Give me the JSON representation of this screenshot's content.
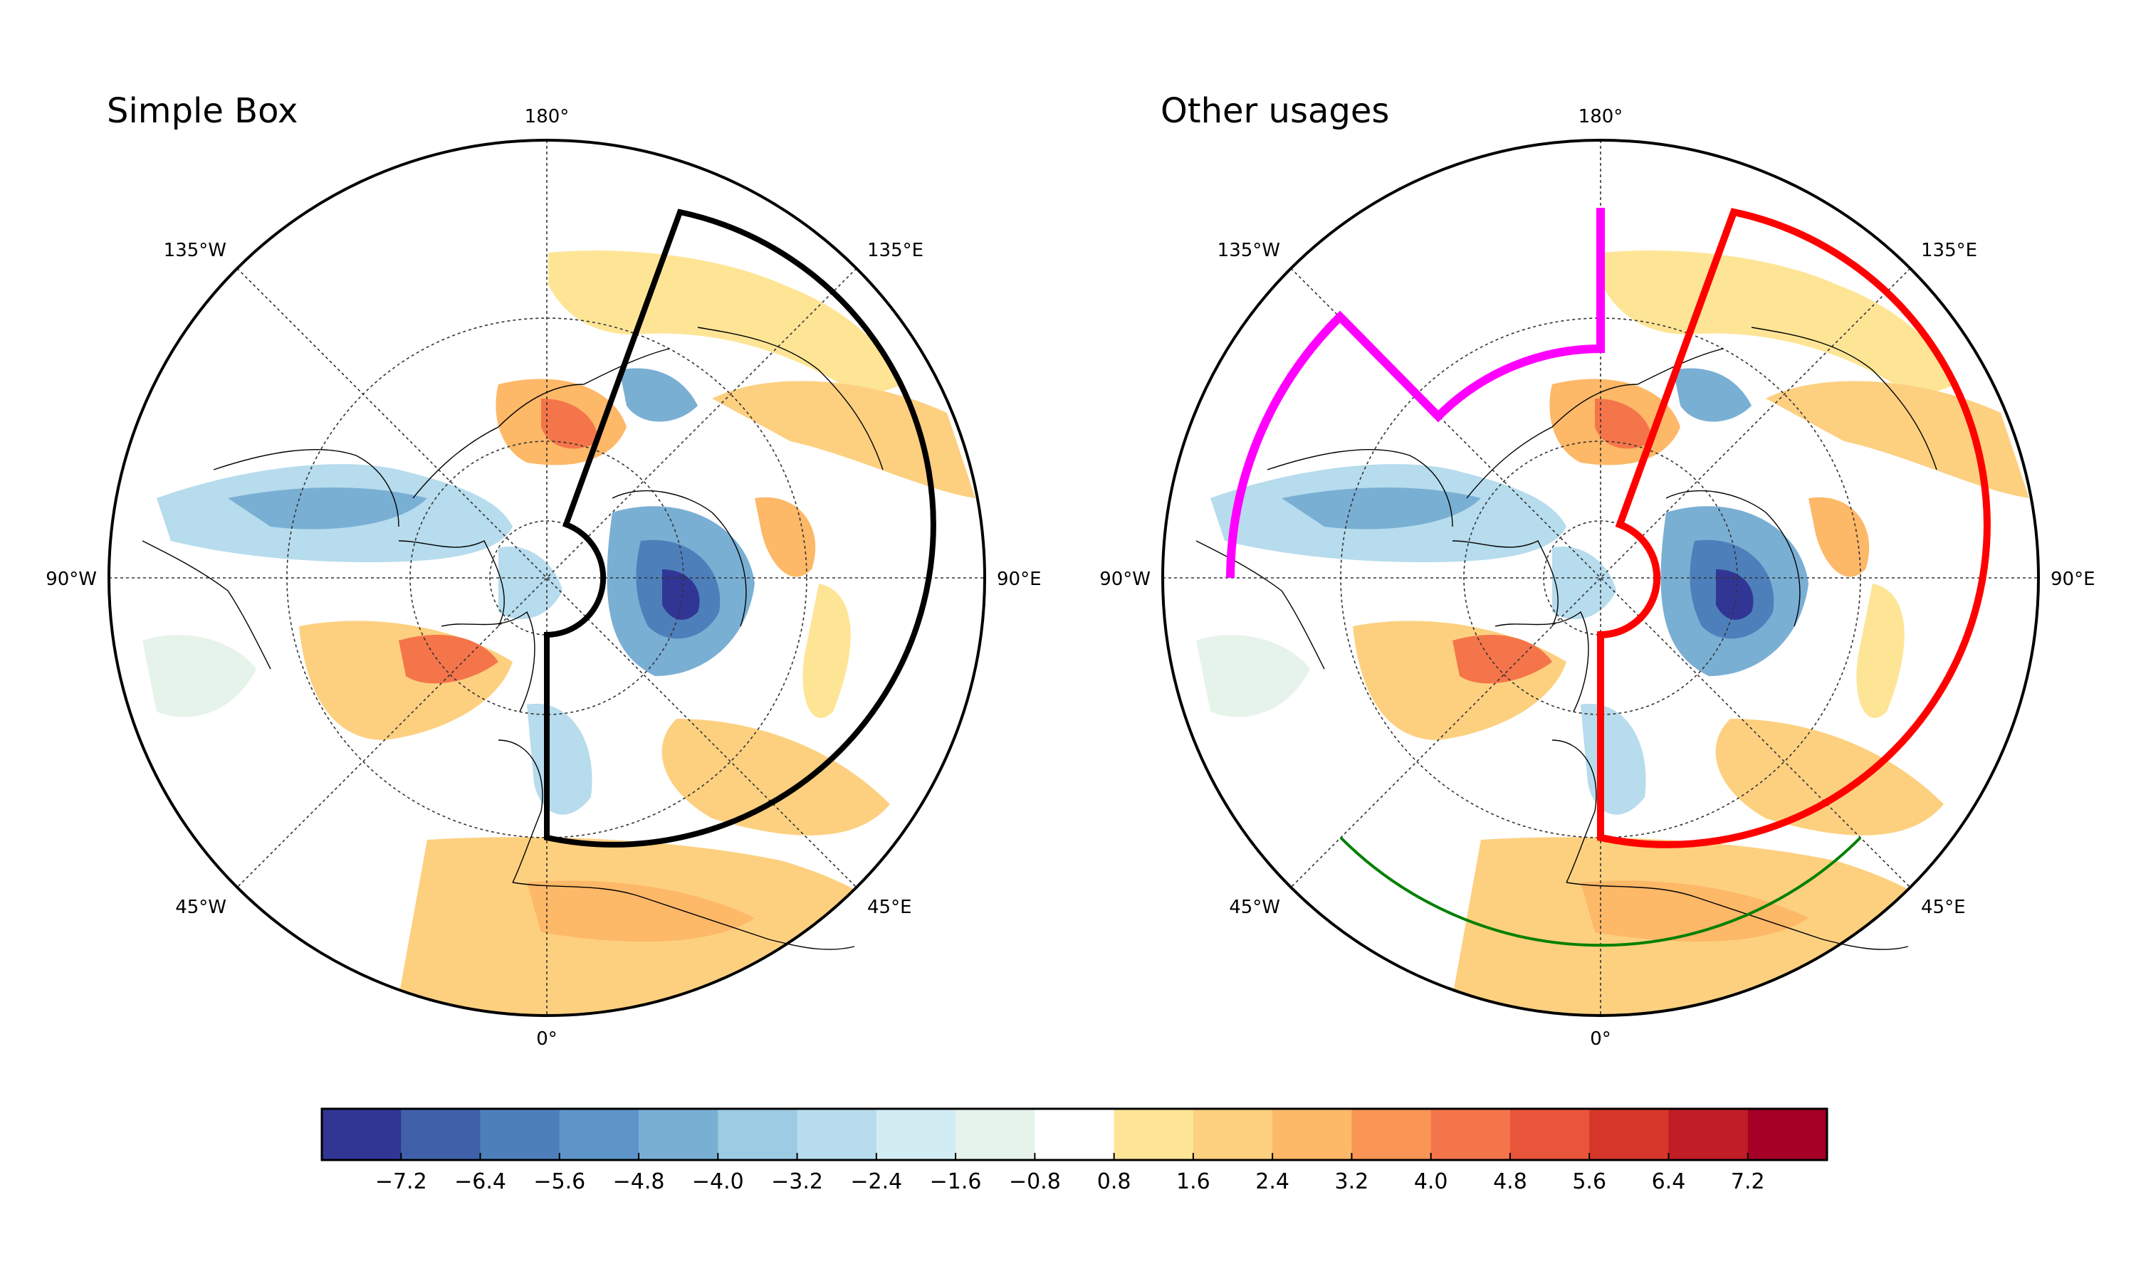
{
  "panels": [
    {
      "id": "left",
      "title": "Simple Box",
      "lon_labels": {
        "top": "180°",
        "bottom": "0°",
        "left": "90°W",
        "right": "90°E",
        "upper_left": "135°W",
        "upper_right": "135°E",
        "lower_left": "45°W",
        "lower_right": "45°E"
      },
      "overlays": [
        {
          "kind": "sector-box",
          "color": "#000000",
          "lon_range_deg": [
            0,
            160
          ],
          "lat_range_deg": [
            80,
            40
          ]
        }
      ]
    },
    {
      "id": "right",
      "title": "Other usages",
      "lon_labels": {
        "top": "180°",
        "bottom": "0°",
        "left": "90°W",
        "right": "90°E",
        "upper_left": "135°W",
        "upper_right": "135°E",
        "lower_left": "45°W",
        "lower_right": "45°E"
      },
      "overlays": [
        {
          "kind": "sector-box",
          "color": "#ff0000",
          "lon_range_deg": [
            0,
            160
          ],
          "lat_range_deg": [
            80,
            40
          ]
        },
        {
          "kind": "polyline",
          "color": "#ff00ff"
        },
        {
          "kind": "arc",
          "color": "#008000",
          "lon_range_deg": [
            -45,
            45
          ]
        }
      ]
    }
  ],
  "colorbar": {
    "ticks": [
      "−7.2",
      "−6.4",
      "−5.6",
      "−4.8",
      "−4.0",
      "−3.2",
      "−2.4",
      "−1.6",
      "−0.8",
      "0.8",
      "1.6",
      "2.4",
      "3.2",
      "4.0",
      "4.8",
      "5.6",
      "6.4",
      "7.2"
    ],
    "colors": [
      "#313695",
      "#4061aa",
      "#4d7fbb",
      "#5e95c8",
      "#7aafd4",
      "#9ccbe3",
      "#b6dced",
      "#d2ecf4",
      "#e6f3ea",
      "#ffffff",
      "#fee596",
      "#fdd080",
      "#fdb868",
      "#f99555",
      "#f5754a",
      "#e8553b",
      "#d6372a",
      "#c01d27",
      "#a50026"
    ]
  }
}
